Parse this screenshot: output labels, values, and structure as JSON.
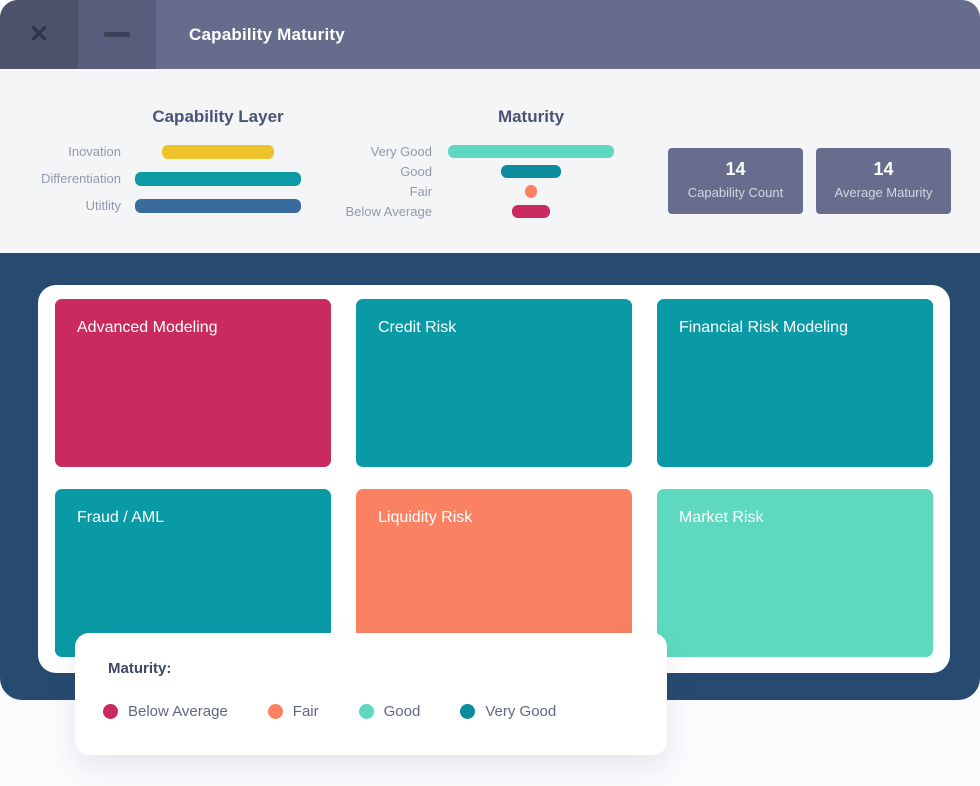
{
  "titlebar": {
    "title": "Capability Maturity"
  },
  "header": {
    "stat_cards": [
      {
        "value": "14",
        "label": "Capability Count"
      },
      {
        "value": "14",
        "label": "Average Maturity"
      }
    ]
  },
  "chart_data": [
    {
      "type": "bar",
      "variant": "centered-funnel",
      "orientation": "horizontal",
      "title": "Capability Layer",
      "categories": [
        "Inovation",
        "Differentiation",
        "Utitlity"
      ],
      "values_pct_of_max_width": [
        67,
        100,
        100
      ],
      "bar_colors": [
        "#eec22a",
        "#0c9aa6",
        "#3a6b9e"
      ],
      "value_axis_shown": false,
      "grid": false,
      "legend_position": "none"
    },
    {
      "type": "bar",
      "variant": "centered-funnel",
      "orientation": "horizontal",
      "title": "Maturity",
      "categories": [
        "Very Good",
        "Good",
        "Fair",
        "Below Average"
      ],
      "values_pct_of_max_width": [
        100,
        36,
        7,
        23
      ],
      "bar_colors": [
        "#5ed9c0",
        "#0e8c9d",
        "#fa8263",
        "#ca2b5e"
      ],
      "value_axis_shown": false,
      "grid": false,
      "legend_position": "none"
    }
  ],
  "board": {
    "tiles": [
      {
        "label": "Advanced Modeling",
        "color": "#ca2b5e",
        "maturity": "Below Average"
      },
      {
        "label": "Credit Risk",
        "color": "#0a9aa6",
        "maturity": "Very Good"
      },
      {
        "label": "Financial Risk Modeling",
        "color": "#0a9aa6",
        "maturity": "Very Good"
      },
      {
        "label": "Fraud / AML",
        "color": "#0a9aa6",
        "maturity": "Very Good"
      },
      {
        "label": "Liquidity Risk",
        "color": "#fa8263",
        "maturity": "Fair"
      },
      {
        "label": "Market Risk",
        "color": "#5ed9c0",
        "maturity": "Good"
      }
    ]
  },
  "legend": {
    "title": "Maturity:",
    "items": [
      {
        "label": "Below Average",
        "color": "#ca2b5e"
      },
      {
        "label": "Fair",
        "color": "#fa8263"
      },
      {
        "label": "Good",
        "color": "#5ed9c0"
      },
      {
        "label": "Very Good",
        "color": "#0e8c9d"
      }
    ]
  },
  "theme": {
    "titlebar_bg": "#666c8b",
    "titlebar_close_bg": "#4c5269",
    "titlebar_min_bg": "#575d7a",
    "header_bg": "#f4f5f7",
    "panel_navy": "#274a70",
    "card_bg": "#ffffff",
    "stat_card_bg": "#666d8d",
    "page_bg": "#fafbfd"
  }
}
